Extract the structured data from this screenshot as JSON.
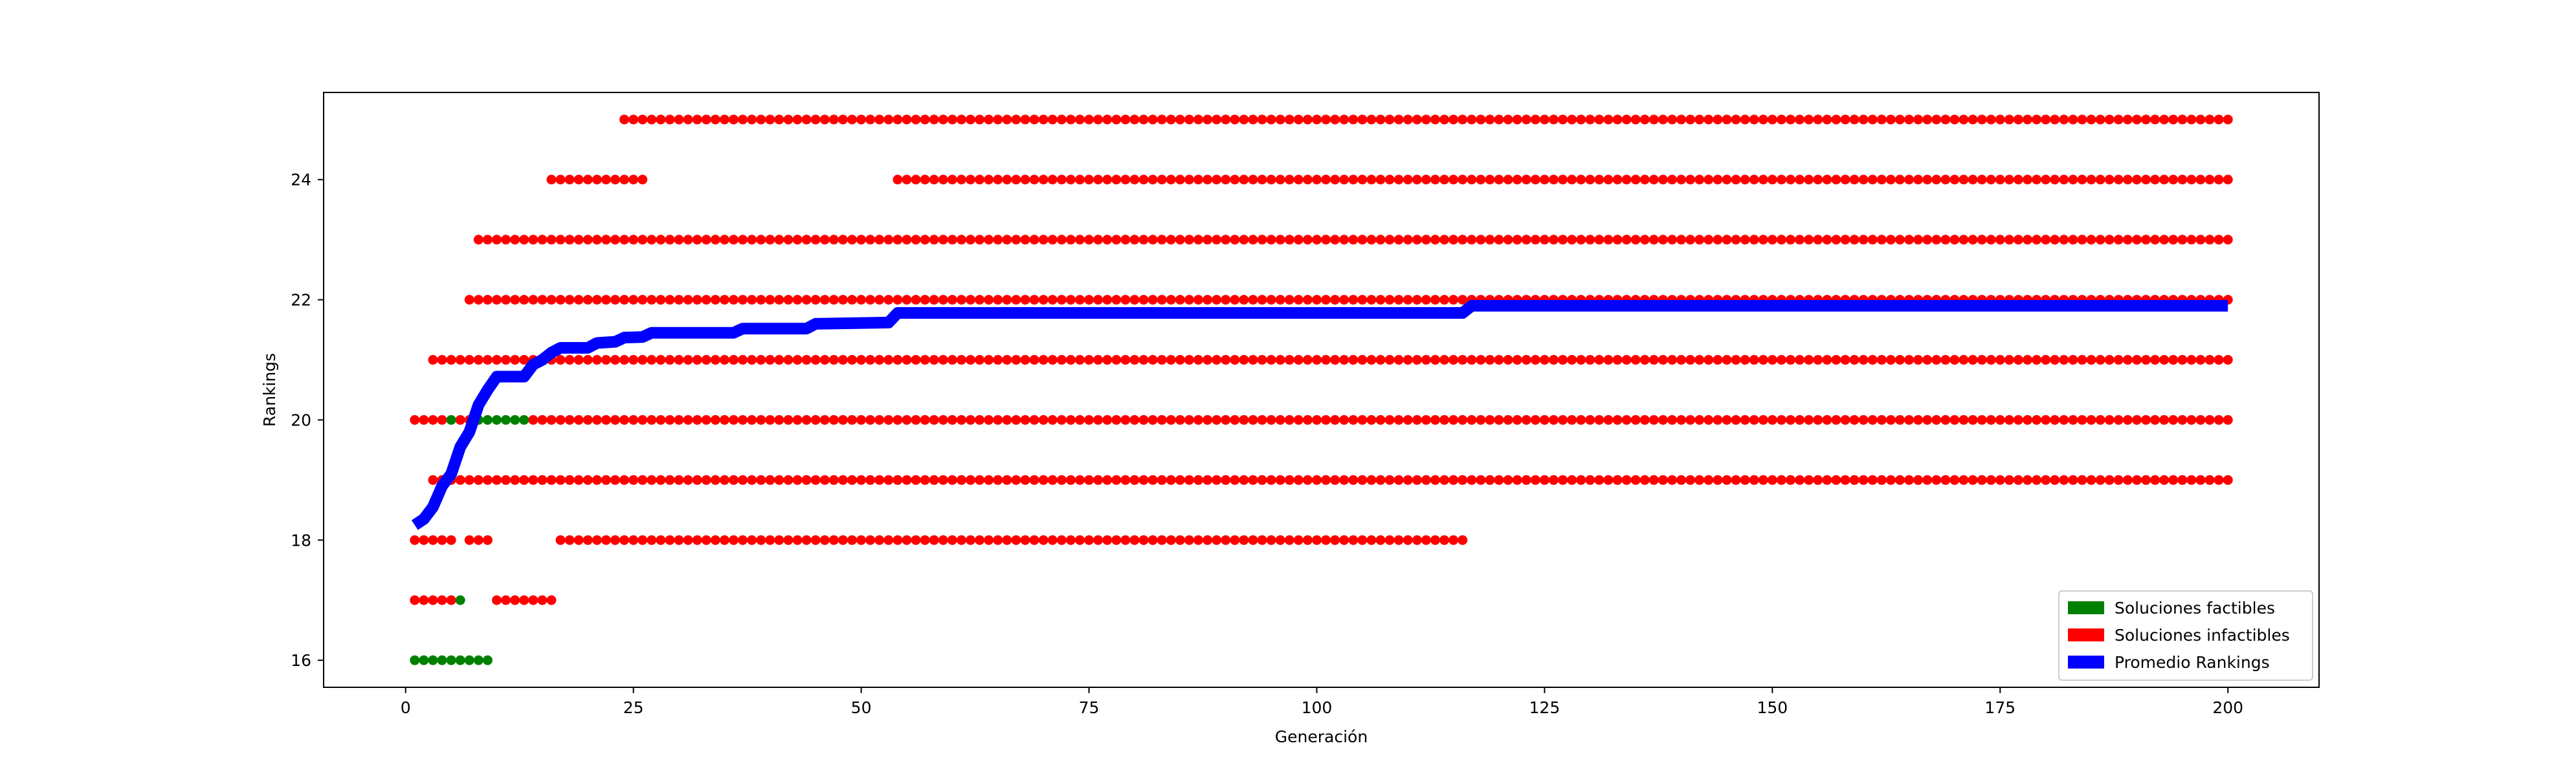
{
  "chart_data": {
    "type": "scatter",
    "xlabel": "Generación",
    "ylabel": "Rankings",
    "xlim": [
      -9,
      210
    ],
    "ylim": [
      15.55,
      25.45
    ],
    "xticks": [
      0,
      25,
      50,
      75,
      100,
      125,
      150,
      175,
      200
    ],
    "yticks": [
      16,
      18,
      20,
      22,
      24
    ],
    "legend_position": "lower right",
    "series": [
      {
        "name": "Soluciones factibles",
        "color": "#008000",
        "points": [
          [
            1,
            16
          ],
          [
            2,
            16
          ],
          [
            3,
            16
          ],
          [
            4,
            16
          ],
          [
            5,
            16
          ],
          [
            6,
            16
          ],
          [
            7,
            16
          ],
          [
            8,
            16
          ],
          [
            9,
            16
          ],
          [
            6,
            17
          ],
          [
            5,
            20
          ],
          [
            8,
            20
          ],
          [
            9,
            20
          ],
          [
            10,
            20
          ],
          [
            11,
            20
          ],
          [
            12,
            20
          ],
          [
            13,
            20
          ]
        ]
      },
      {
        "name": "Soluciones infactibles",
        "color": "#ff0000",
        "ranges": [
          {
            "y": 17,
            "x": [
              [
                1,
                5
              ],
              [
                10,
                16
              ]
            ]
          },
          {
            "y": 18,
            "x": [
              [
                1,
                5
              ],
              [
                7,
                9
              ],
              [
                17,
                116
              ]
            ]
          },
          {
            "y": 19,
            "x": [
              [
                3,
                200
              ]
            ]
          },
          {
            "y": 20,
            "x": [
              [
                1,
                4
              ],
              [
                6,
                7
              ],
              [
                14,
                200
              ]
            ]
          },
          {
            "y": 21,
            "x": [
              [
                3,
                200
              ]
            ]
          },
          {
            "y": 22,
            "x": [
              [
                7,
                200
              ]
            ]
          },
          {
            "y": 23,
            "x": [
              [
                8,
                200
              ]
            ]
          },
          {
            "y": 24,
            "x": [
              [
                16,
                26
              ],
              [
                54,
                200
              ]
            ]
          },
          {
            "y": 25,
            "x": [
              [
                24,
                200
              ]
            ]
          }
        ]
      },
      {
        "name": "Promedio Rankings",
        "color": "#0000ff",
        "line": [
          [
            1,
            18.25
          ],
          [
            2,
            18.35
          ],
          [
            3,
            18.55
          ],
          [
            4,
            18.9
          ],
          [
            5,
            19.1
          ],
          [
            6,
            19.55
          ],
          [
            7,
            19.8
          ],
          [
            8,
            20.25
          ],
          [
            9,
            20.5
          ],
          [
            10,
            20.72
          ],
          [
            13,
            20.72
          ],
          [
            14,
            20.92
          ],
          [
            15,
            21.0
          ],
          [
            16,
            21.12
          ],
          [
            17,
            21.2
          ],
          [
            20,
            21.2
          ],
          [
            21,
            21.28
          ],
          [
            23,
            21.3
          ],
          [
            24,
            21.37
          ],
          [
            26,
            21.38
          ],
          [
            27,
            21.45
          ],
          [
            36,
            21.45
          ],
          [
            37,
            21.52
          ],
          [
            44,
            21.52
          ],
          [
            45,
            21.6
          ],
          [
            53,
            21.62
          ],
          [
            54,
            21.78
          ],
          [
            116,
            21.78
          ],
          [
            117,
            21.9
          ],
          [
            200,
            21.9
          ]
        ]
      }
    ]
  }
}
